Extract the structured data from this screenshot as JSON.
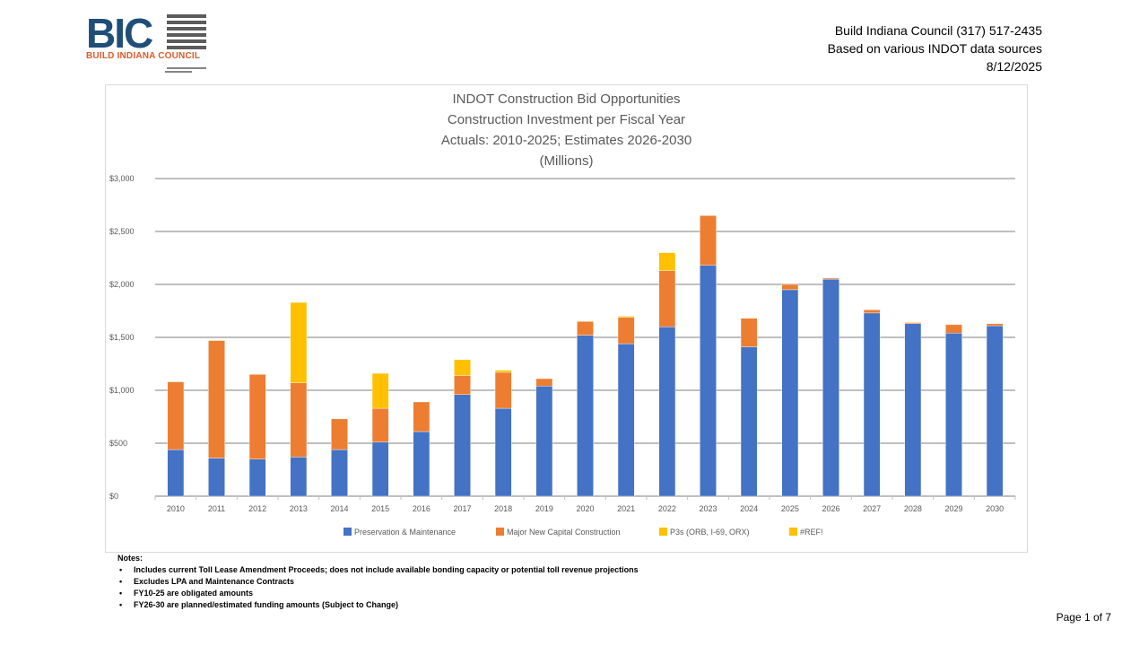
{
  "header": {
    "logo_text": "BIC",
    "logo_subtext": "BUILD INDIANA COUNCIL",
    "contact": "Build Indiana Council (317) 517-2435",
    "source": "Based on various INDOT data sources",
    "date": "8/12/2025"
  },
  "chart_data": {
    "type": "bar",
    "stacked": true,
    "title_lines": [
      "INDOT Construction Bid Opportunities",
      "Construction Investment per Fiscal Year",
      "Actuals: 2010-2025; Estimates 2026-2030",
      "(Millions)"
    ],
    "xlabel": "",
    "ylabel": "",
    "ylim": [
      0,
      3000
    ],
    "y_ticks": [
      0,
      500,
      1000,
      1500,
      2000,
      2500,
      3000
    ],
    "y_tick_labels": [
      "$0",
      "$500",
      "$1,000",
      "$1,500",
      "$2,000",
      "$2,500",
      "$3,000"
    ],
    "grid": true,
    "legend_position": "bottom",
    "categories": [
      "2010",
      "2011",
      "2012",
      "2013",
      "2014",
      "2015",
      "2016",
      "2017",
      "2018",
      "2019",
      "2020",
      "2021",
      "2022",
      "2023",
      "2024",
      "2025",
      "2026",
      "2027",
      "2028",
      "2029",
      "2030"
    ],
    "series": [
      {
        "name": "Preservation & Maintenance",
        "color": "#4472c4",
        "values": [
          440,
          360,
          350,
          370,
          440,
          510,
          610,
          960,
          830,
          1040,
          1520,
          1440,
          1600,
          2180,
          1410,
          1950,
          2050,
          1730,
          1630,
          1540,
          1610
        ]
      },
      {
        "name": "Major New Capital Construction",
        "color": "#ed7d31",
        "values": [
          640,
          1110,
          800,
          700,
          290,
          320,
          280,
          180,
          340,
          70,
          130,
          250,
          530,
          470,
          270,
          50,
          10,
          30,
          10,
          80,
          20
        ]
      },
      {
        "name": "P3s (ORB, I-69, ORX)",
        "color": "#ffc000",
        "values": [
          0,
          0,
          0,
          760,
          0,
          330,
          0,
          150,
          20,
          0,
          0,
          10,
          170,
          0,
          0,
          0,
          0,
          0,
          0,
          0,
          0
        ]
      },
      {
        "name": "#REF!",
        "color": "#ffc000",
        "values": [
          0,
          0,
          0,
          0,
          0,
          0,
          0,
          0,
          0,
          0,
          0,
          0,
          0,
          0,
          0,
          0,
          0,
          0,
          0,
          0,
          0
        ]
      }
    ]
  },
  "notes": {
    "heading": "Notes:",
    "items": [
      "Includes current Toll Lease Amendment Proceeds; does not include available bonding capacity or potential toll revenue projections",
      "Excludes LPA and Maintenance Contracts",
      "FY10-25 are obligated amounts",
      "FY26-30 are planned/estimated funding amounts (Subject to Change)"
    ]
  },
  "page": {
    "label": "Page 1 of 7"
  }
}
